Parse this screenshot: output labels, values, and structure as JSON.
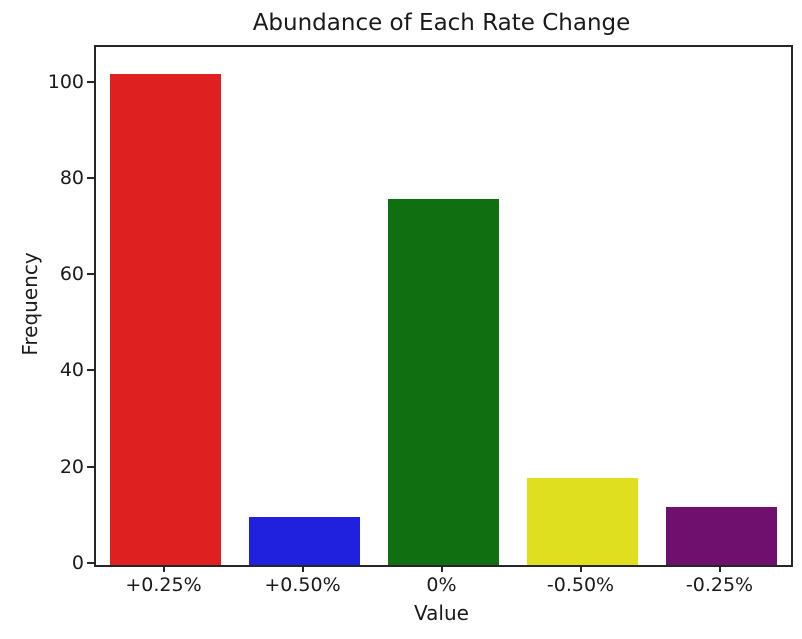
{
  "figure": {
    "background": "#ffffff",
    "text_color": "#1a1a1a",
    "spine_color": "#262626"
  },
  "chart_data": {
    "type": "bar",
    "title": "Abundance of Each Rate Change",
    "xlabel": "Value",
    "ylabel": "Frequency",
    "categories": [
      "+0.25%",
      "+0.50%",
      "0%",
      "-0.50%",
      "-0.25%"
    ],
    "values": [
      102,
      10,
      76,
      18,
      12
    ],
    "bar_colors": [
      "#df2020",
      "#2020df",
      "#106f10",
      "#dfdf20",
      "#6f106f"
    ],
    "ylim": [
      0,
      107.6
    ],
    "y_ticks": [
      0,
      20,
      40,
      60,
      80,
      100
    ],
    "bar_width_fraction": 0.8,
    "grid": false,
    "legend_position": "none"
  }
}
